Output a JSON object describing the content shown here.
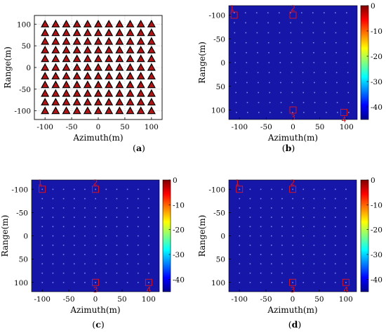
{
  "colors": {
    "background": "#ffffff",
    "image_background": "#1616a8",
    "triangle_fill": "#b01414",
    "triangle_edge": "#000000",
    "marker_red": "#e8141c",
    "grid": "#bfbfbf"
  },
  "chart_data": [
    {
      "id": "a",
      "type": "scatter",
      "panel_label": "a",
      "xlabel": "Azimuth(m)",
      "ylabel": "Range(m)",
      "xlim": [
        -120,
        120
      ],
      "ylim": [
        -120,
        120
      ],
      "xticks": [
        -100,
        -50,
        0,
        50,
        100
      ],
      "yticks": [
        100,
        50,
        0,
        -50,
        -100
      ],
      "grid": true,
      "marker": "triangle",
      "points": {
        "x": [
          -100,
          -80,
          -60,
          -40,
          -20,
          0,
          20,
          40,
          60,
          80,
          100
        ],
        "y": [
          -100,
          -80,
          -60,
          -40,
          -20,
          0,
          20,
          40,
          60,
          80,
          100
        ],
        "layout": "full grid of 11 x 11 point targets"
      }
    },
    {
      "id": "b",
      "type": "heatmap",
      "panel_label": "b",
      "xlabel": "Azimuth(m)",
      "ylabel": "Range(m)",
      "xlim": [
        -120,
        120
      ],
      "ylim": [
        -120,
        120
      ],
      "xticks": [
        -100,
        -50,
        0,
        50,
        100
      ],
      "yticks": [
        -100,
        -50,
        0,
        50,
        100
      ],
      "y_axis_reversed": true,
      "colorbar": {
        "range": [
          -45,
          0
        ],
        "ticks": [
          0,
          -10,
          -20,
          -30,
          -40
        ],
        "colormap": "jet"
      },
      "points_spacing": 20,
      "markers": [
        {
          "label": "1",
          "x": -110,
          "y": -100
        },
        {
          "label": "2",
          "x": 0,
          "y": -100
        },
        {
          "label": "3",
          "x": 0,
          "y": 100
        },
        {
          "label": "4",
          "x": 95,
          "y": 105
        }
      ]
    },
    {
      "id": "c",
      "type": "heatmap",
      "panel_label": "c",
      "xlabel": "Azimuth(m)",
      "ylabel": "Range(m)",
      "xlim": [
        -120,
        120
      ],
      "ylim": [
        -120,
        120
      ],
      "xticks": [
        -100,
        -50,
        0,
        50,
        100
      ],
      "yticks": [
        -100,
        -50,
        0,
        50,
        100
      ],
      "y_axis_reversed": true,
      "colorbar": {
        "range": [
          -45,
          0
        ],
        "ticks": [
          0,
          -10,
          -20,
          -30,
          -40
        ],
        "colormap": "jet"
      },
      "points_spacing": 20,
      "markers": [
        {
          "label": "1",
          "x": -100,
          "y": -100
        },
        {
          "label": "2",
          "x": 0,
          "y": -100
        },
        {
          "label": "3",
          "x": 0,
          "y": 100
        },
        {
          "label": "4",
          "x": 100,
          "y": 100
        }
      ]
    },
    {
      "id": "d",
      "type": "heatmap",
      "panel_label": "d",
      "xlabel": "Azimuth(m)",
      "ylabel": "Range(m)",
      "xlim": [
        -120,
        120
      ],
      "ylim": [
        -120,
        120
      ],
      "xticks": [
        -100,
        -50,
        0,
        50,
        100
      ],
      "yticks": [
        -100,
        -50,
        0,
        50,
        100
      ],
      "y_axis_reversed": true,
      "colorbar": {
        "range": [
          -45,
          0
        ],
        "ticks": [
          0,
          -10,
          -20,
          -30,
          -40
        ],
        "colormap": "jet"
      },
      "points_spacing": 20,
      "markers": [
        {
          "label": "1",
          "x": -100,
          "y": -100
        },
        {
          "label": "2",
          "x": 0,
          "y": -100
        },
        {
          "label": "3",
          "x": 0,
          "y": 100
        },
        {
          "label": "4",
          "x": 100,
          "y": 100
        }
      ]
    }
  ]
}
